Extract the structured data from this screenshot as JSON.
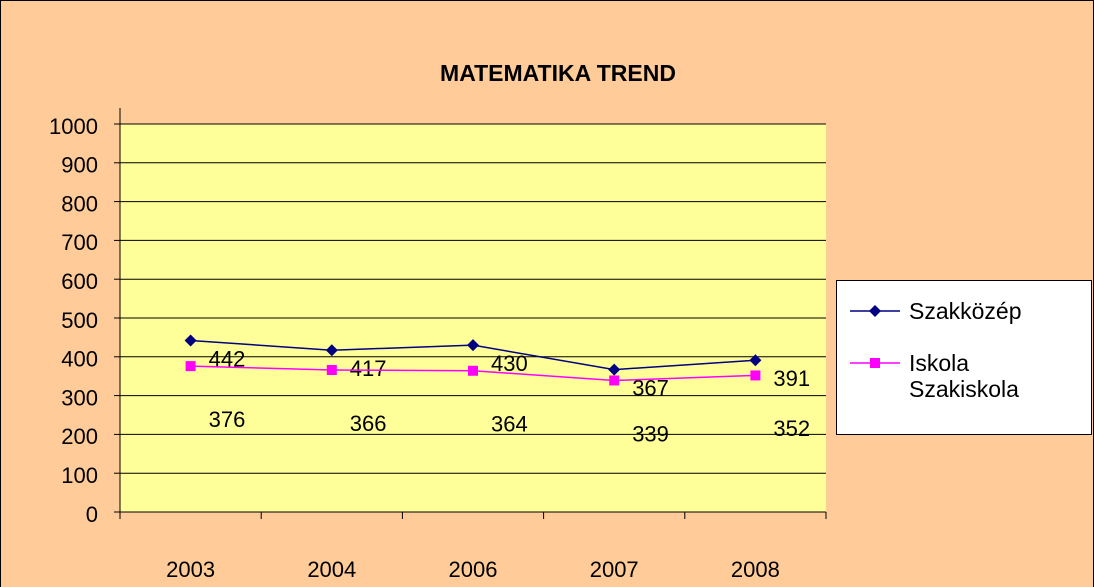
{
  "chart_data": {
    "type": "line",
    "title": "MATEMATIKA TREND",
    "categories": [
      "2003",
      "2004",
      "2006",
      "2007",
      "2008"
    ],
    "series": [
      {
        "name": "Szakközép",
        "color": "#000080",
        "marker": "diamond",
        "values": [
          442,
          417,
          430,
          367,
          391
        ]
      },
      {
        "name": "Iskola Szakiskola",
        "color": "#FF00FF",
        "marker": "square",
        "values": [
          376,
          366,
          364,
          339,
          352
        ]
      }
    ],
    "ylim": [
      0,
      1000
    ],
    "yticks": [
      0,
      100,
      200,
      300,
      400,
      500,
      600,
      700,
      800,
      900,
      1000
    ],
    "grid": true,
    "legend": "right"
  }
}
